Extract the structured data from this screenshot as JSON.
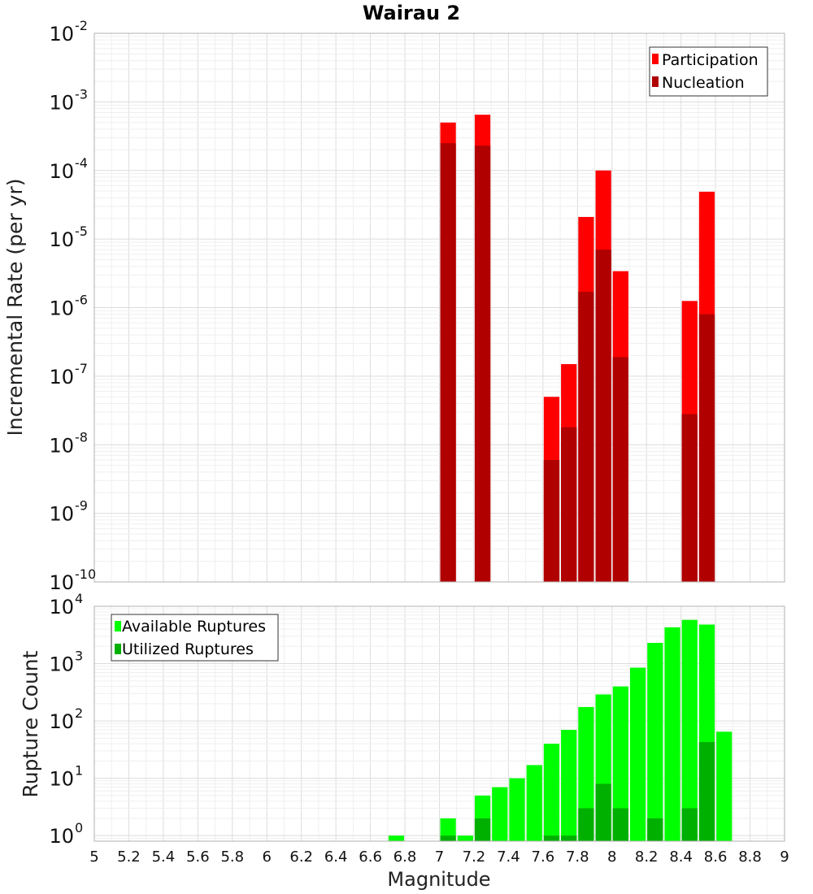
{
  "chart_data": [
    {
      "type": "bar",
      "title": "Wairau 2",
      "ylabel": "Incremental Rate (per yr)",
      "yscale": "log",
      "ylim": [
        1e-10,
        0.01
      ],
      "xlim": [
        5,
        9
      ],
      "grid": true,
      "legend_position": "top-right",
      "x": [
        7.05,
        7.25,
        7.65,
        7.75,
        7.85,
        7.95,
        8.05,
        8.45,
        8.55
      ],
      "series": [
        {
          "name": "Participation",
          "color": "#ff0000",
          "values": [
            0.0005,
            0.00065,
            5e-08,
            1.5e-07,
            2.1e-05,
            0.0001,
            3.4e-06,
            1.25e-06,
            4.9e-05
          ]
        },
        {
          "name": "Nucleation",
          "color": "#b00000",
          "values": [
            0.00025,
            0.00023,
            6e-09,
            1.8e-08,
            1.7e-06,
            7e-06,
            1.9e-07,
            2.8e-08,
            8e-07
          ]
        }
      ],
      "yticks": [
        {
          "base": "10",
          "exp": "-10"
        },
        {
          "base": "10",
          "exp": "-9"
        },
        {
          "base": "10",
          "exp": "-8"
        },
        {
          "base": "10",
          "exp": "-7"
        },
        {
          "base": "10",
          "exp": "-6"
        },
        {
          "base": "10",
          "exp": "-5"
        },
        {
          "base": "10",
          "exp": "-4"
        },
        {
          "base": "10",
          "exp": "-3"
        },
        {
          "base": "10",
          "exp": "-2"
        }
      ]
    },
    {
      "type": "bar",
      "ylabel": "Rupture Count",
      "xlabel": "Magnitude",
      "yscale": "log",
      "ylim": [
        0.8,
        10000
      ],
      "xlim": [
        5,
        9
      ],
      "grid": true,
      "legend_position": "top-left",
      "x": [
        6.75,
        7.05,
        7.15,
        7.25,
        7.35,
        7.45,
        7.55,
        7.65,
        7.75,
        7.85,
        7.95,
        8.05,
        8.15,
        8.25,
        8.35,
        8.45,
        8.55,
        8.65
      ],
      "series": [
        {
          "name": "Available Ruptures",
          "color": "#00ff00",
          "values": [
            1,
            2,
            1,
            5,
            7,
            10,
            17,
            40,
            70,
            175,
            290,
            400,
            850,
            2300,
            4300,
            5800,
            4800,
            65
          ]
        },
        {
          "name": "Utilized Ruptures",
          "color": "#00b000",
          "values": [
            0,
            1,
            0,
            2,
            0,
            0,
            0,
            1,
            1,
            3,
            8,
            3,
            0,
            2,
            0,
            3,
            43,
            0
          ]
        }
      ],
      "yticks": [
        {
          "base": "10",
          "exp": "0"
        },
        {
          "base": "10",
          "exp": "1"
        },
        {
          "base": "10",
          "exp": "2"
        },
        {
          "base": "10",
          "exp": "3"
        },
        {
          "base": "10",
          "exp": "4"
        }
      ],
      "xticks": [
        "5",
        "5.2",
        "5.4",
        "5.6",
        "5.8",
        "6",
        "6.2",
        "6.4",
        "6.6",
        "6.8",
        "7",
        "7.2",
        "7.4",
        "7.6",
        "7.8",
        "8",
        "8.2",
        "8.4",
        "8.6",
        "8.8",
        "9"
      ]
    }
  ]
}
